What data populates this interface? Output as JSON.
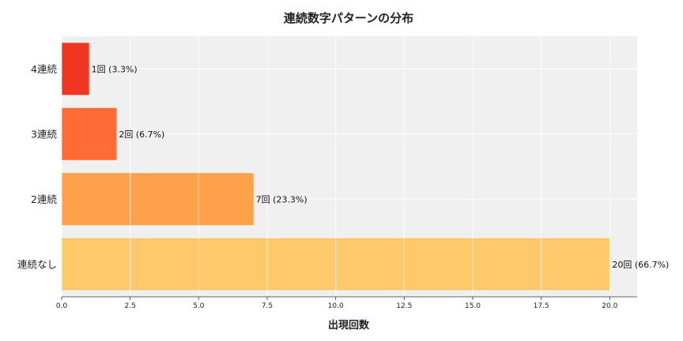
{
  "chart_data": {
    "type": "bar",
    "orientation": "horizontal",
    "title": "連続数字パターンの分布",
    "xlabel": "出現回数",
    "ylabel": "",
    "categories": [
      "4連続",
      "3連続",
      "2連続",
      "連続なし"
    ],
    "values": [
      1,
      2,
      7,
      20
    ],
    "data_labels": [
      "1回 (3.3%)",
      "2回 (6.7%)",
      "7回 (23.3%)",
      "20回 (66.7%)"
    ],
    "colors": [
      "#f03523",
      "#ff6b35",
      "#ffa04a",
      "#fec96a"
    ],
    "xlim": [
      0,
      21
    ],
    "xticks": [
      0,
      2.5,
      5,
      7.5,
      10,
      12.5,
      15,
      17.5,
      20
    ],
    "xtick_labels": [
      "0.0",
      "2.5",
      "5.0",
      "7.5",
      "10.0",
      "12.5",
      "15.0",
      "17.5",
      "20.0"
    ],
    "grid": true,
    "background": "#f0f0f0"
  }
}
